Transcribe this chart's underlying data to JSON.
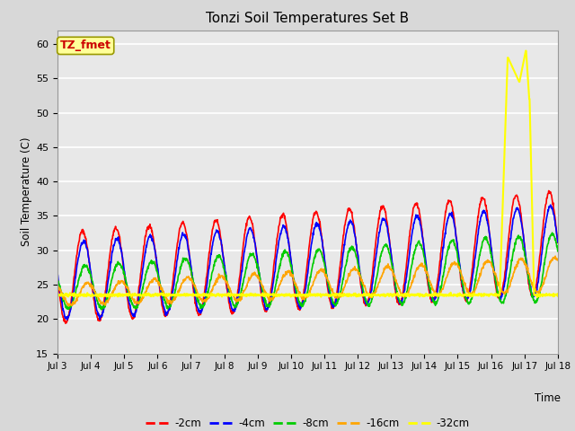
{
  "title": "Tonzi Soil Temperatures Set B",
  "ylabel": "Soil Temperature (C)",
  "xlabel": "Time",
  "ylim": [
    15,
    62
  ],
  "yticks": [
    15,
    20,
    25,
    30,
    35,
    40,
    45,
    50,
    55,
    60
  ],
  "bg_color": "#d8d8d8",
  "plot_bg_color": "#e8e8e8",
  "annotation_text": "TZ_fmet",
  "annotation_color": "#cc0000",
  "annotation_bg": "#ffff99",
  "legend_labels": [
    "-2cm",
    "-4cm",
    "-8cm",
    "-16cm",
    "-32cm"
  ],
  "line_colors": [
    "#ff0000",
    "#0000ff",
    "#00cc00",
    "#ffa500",
    "#ffff00"
  ],
  "line_widths": [
    1.2,
    1.2,
    1.2,
    1.2,
    1.5
  ],
  "xtick_labels": [
    "Jul 3",
    "Jul 4",
    "Jul 5",
    "Jul 6",
    "Jul 7",
    "Jul 8",
    "Jul 9",
    "Jul 10",
    "Jul 11",
    "Jul 12",
    "Jul 13",
    "Jul 14",
    "Jul 15",
    "Jul 16",
    "Jul 17",
    "Jul 18"
  ],
  "num_days": 15,
  "points_per_day": 96,
  "seed": 42
}
